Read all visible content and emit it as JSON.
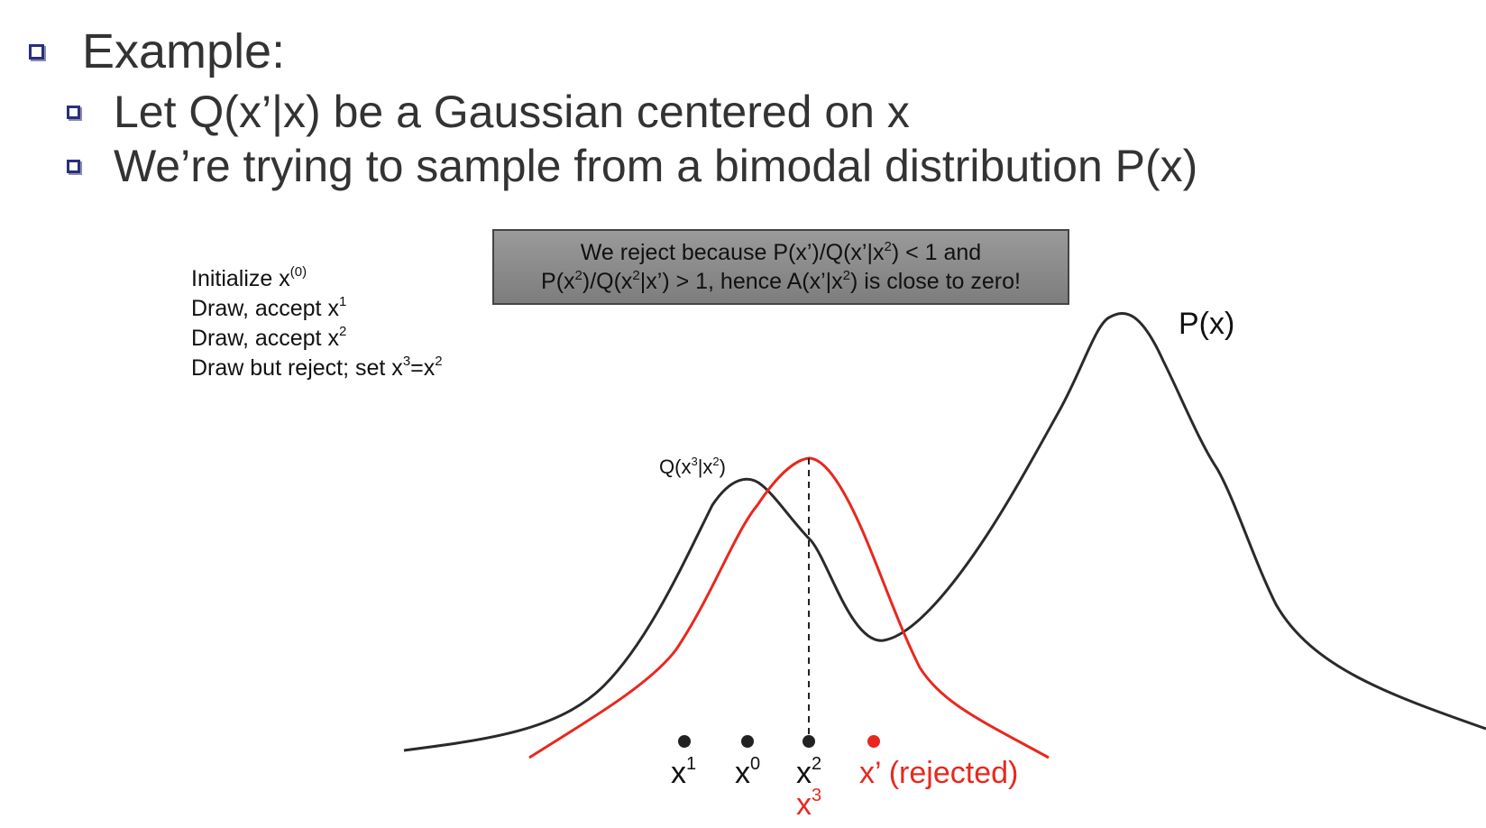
{
  "bullets": {
    "main": "Example:",
    "sub": [
      "Let Q(x’|x) be a Gaussian centered on x",
      "We’re trying to sample from a bimodal distribution P(x)"
    ]
  },
  "steps": [
    {
      "text": "Initialize x",
      "sup": "(0)",
      "tail": ""
    },
    {
      "text": "Draw, accept x",
      "sup": "1",
      "tail": ""
    },
    {
      "text": "Draw, accept x",
      "sup": "2",
      "tail": ""
    },
    {
      "text": "Draw but reject; set x",
      "sup": "3",
      "mid": "=x",
      "sup2": "2"
    }
  ],
  "callout": {
    "l1a": "We reject because P(x’)/Q(x’|x",
    "l1s": "2",
    "l1b": ") < 1 and",
    "l2a": "P(x",
    "l2s1": "2",
    "l2b": ")/Q(x",
    "l2s2": "2",
    "l2c": "|x’) > 1, hence A(x’|x",
    "l2s3": "2",
    "l2d": ") is close to zero!"
  },
  "labels": {
    "p": "P(x)",
    "q_a": "Q(x",
    "q_s1": "3",
    "q_b": "|x",
    "q_s2": "2",
    "q_c": ")",
    "x1_base": "x",
    "x1_sup": "1",
    "x0_base": "x",
    "x0_sup": "0",
    "x2_base": "x",
    "x2_sup": "2",
    "x3_base": "x",
    "x3_sup": "3",
    "rejected": "x’ (rejected)"
  },
  "colors": {
    "bullet": "#2b2f7a",
    "p_curve": "#2a2a2a",
    "q_curve": "#e8281e",
    "rejected": "#e8281e",
    "callout_bg": "#8a8a8a"
  }
}
